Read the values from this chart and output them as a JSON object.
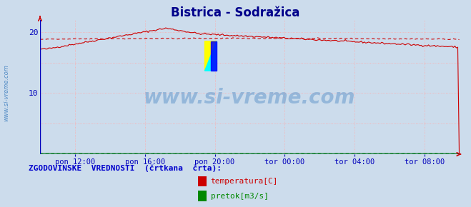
{
  "title": "Bistrica - Sodražica",
  "title_color": "#00008B",
  "title_fontsize": 12,
  "bg_color": "#ccdcec",
  "plot_bg_color": "#ccdcec",
  "grid_color": "#ffaaaa",
  "xticklabels": [
    "pon 12:00",
    "pon 16:00",
    "pon 20:00",
    "tor 00:00",
    "tor 04:00",
    "tor 08:00"
  ],
  "xtick_positions": [
    0.083,
    0.25,
    0.417,
    0.583,
    0.75,
    0.917
  ],
  "ylim": [
    0,
    22
  ],
  "yticks": [
    10,
    20
  ],
  "axis_color": "#0000bb",
  "arrow_color": "#cc0000",
  "temp_color": "#cc0000",
  "pretok_color": "#008800",
  "watermark_text": "www.si-vreme.com",
  "watermark_color": "#6699cc",
  "side_text": "www.si-vreme.com",
  "legend_label": "ZGODOVINSKE  VREDNOSTI  (črtkana  črta):",
  "legend_color": "#0000cc",
  "temp_label": "temperatura[C]",
  "pretok_label": "pretok[m3/s]",
  "n_points": 288
}
